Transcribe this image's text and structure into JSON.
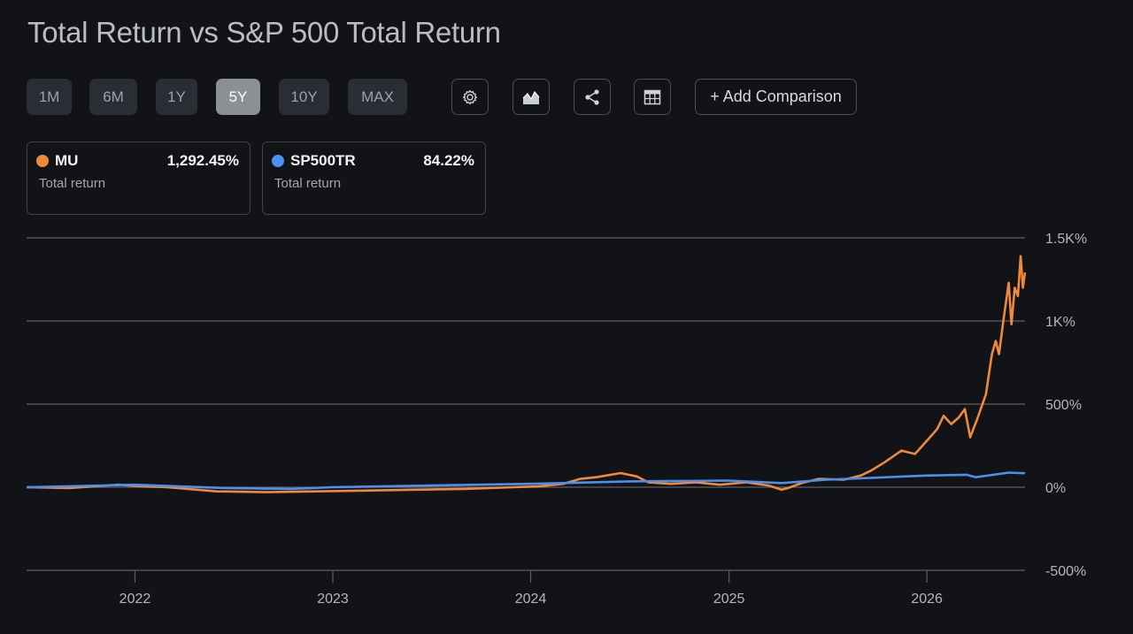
{
  "title": "Total Return vs S&P 500 Total Return",
  "ranges": [
    {
      "label": "1M",
      "active": false
    },
    {
      "label": "6M",
      "active": false
    },
    {
      "label": "1Y",
      "active": false
    },
    {
      "label": "5Y",
      "active": true
    },
    {
      "label": "10Y",
      "active": false
    },
    {
      "label": "MAX",
      "active": false
    }
  ],
  "toolbar": {
    "settings_icon": "gear-icon",
    "chart_type_icon": "mountain-chart-icon",
    "share_icon": "share-icon",
    "table_icon": "table-icon",
    "add_comparison_label": "+ Add Comparison"
  },
  "cards": [
    {
      "symbol": "MU",
      "value": "1,292.45%",
      "subtitle": "Total return",
      "color": "#f0893a"
    },
    {
      "symbol": "SP500TR",
      "value": "84.22%",
      "subtitle": "Total return",
      "color": "#4a90f0"
    }
  ],
  "chart_data": {
    "type": "line",
    "ylim": [
      -500,
      1500
    ],
    "yticks": [
      1500,
      1000,
      500,
      0,
      -500
    ],
    "ytick_labels": [
      "1.5K%",
      "1K%",
      "500%",
      "0%",
      "-500%"
    ],
    "xlim": [
      "2021-06-15",
      "2026-07-01"
    ],
    "xticks": [
      "2022-01-01",
      "2023-01-01",
      "2024-01-01",
      "2025-01-01",
      "2026-01-01"
    ],
    "xtick_labels": [
      "2022",
      "2023",
      "2024",
      "2025",
      "2026"
    ],
    "series": [
      {
        "name": "MU",
        "color": "#f0893a",
        "points": [
          [
            "2021-06-15",
            0
          ],
          [
            "2021-09-01",
            -5
          ],
          [
            "2021-12-01",
            15
          ],
          [
            "2022-01-15",
            5
          ],
          [
            "2022-03-01",
            0
          ],
          [
            "2022-06-01",
            -25
          ],
          [
            "2022-09-01",
            -30
          ],
          [
            "2022-12-01",
            -25
          ],
          [
            "2023-03-01",
            -20
          ],
          [
            "2023-06-01",
            -15
          ],
          [
            "2023-09-01",
            -10
          ],
          [
            "2023-12-01",
            0
          ],
          [
            "2024-01-15",
            5
          ],
          [
            "2024-03-01",
            20
          ],
          [
            "2024-04-01",
            50
          ],
          [
            "2024-05-01",
            60
          ],
          [
            "2024-06-15",
            85
          ],
          [
            "2024-07-15",
            65
          ],
          [
            "2024-08-05",
            30
          ],
          [
            "2024-09-15",
            20
          ],
          [
            "2024-11-01",
            30
          ],
          [
            "2024-12-15",
            15
          ],
          [
            "2025-02-01",
            30
          ],
          [
            "2025-03-15",
            10
          ],
          [
            "2025-04-08",
            -15
          ],
          [
            "2025-04-20",
            -5
          ],
          [
            "2025-05-15",
            25
          ],
          [
            "2025-06-15",
            50
          ],
          [
            "2025-08-01",
            45
          ],
          [
            "2025-09-01",
            70
          ],
          [
            "2025-09-20",
            100
          ],
          [
            "2025-10-15",
            150
          ],
          [
            "2025-11-15",
            220
          ],
          [
            "2025-12-10",
            200
          ],
          [
            "2026-01-01",
            280
          ],
          [
            "2026-01-20",
            350
          ],
          [
            "2026-02-01",
            430
          ],
          [
            "2026-02-15",
            380
          ],
          [
            "2026-03-01",
            420
          ],
          [
            "2026-03-12",
            470
          ],
          [
            "2026-03-22",
            300
          ],
          [
            "2026-04-05",
            420
          ],
          [
            "2026-04-20",
            560
          ],
          [
            "2026-05-01",
            800
          ],
          [
            "2026-05-08",
            880
          ],
          [
            "2026-05-14",
            800
          ],
          [
            "2026-05-22",
            1000
          ],
          [
            "2026-06-01",
            1230
          ],
          [
            "2026-06-06",
            980
          ],
          [
            "2026-06-12",
            1200
          ],
          [
            "2026-06-18",
            1150
          ],
          [
            "2026-06-23",
            1390
          ],
          [
            "2026-06-27",
            1200
          ],
          [
            "2026-07-01",
            1292
          ]
        ]
      },
      {
        "name": "SP500TR",
        "color": "#4a90f0",
        "points": [
          [
            "2021-06-15",
            0
          ],
          [
            "2021-12-31",
            15
          ],
          [
            "2022-06-15",
            -5
          ],
          [
            "2022-10-15",
            -10
          ],
          [
            "2022-12-31",
            0
          ],
          [
            "2023-06-30",
            10
          ],
          [
            "2023-12-31",
            20
          ],
          [
            "2024-06-30",
            35
          ],
          [
            "2024-12-31",
            40
          ],
          [
            "2025-04-08",
            25
          ],
          [
            "2025-06-30",
            45
          ],
          [
            "2025-12-31",
            70
          ],
          [
            "2026-03-15",
            75
          ],
          [
            "2026-04-01",
            60
          ],
          [
            "2026-06-01",
            88
          ],
          [
            "2026-07-01",
            84
          ]
        ]
      }
    ]
  }
}
